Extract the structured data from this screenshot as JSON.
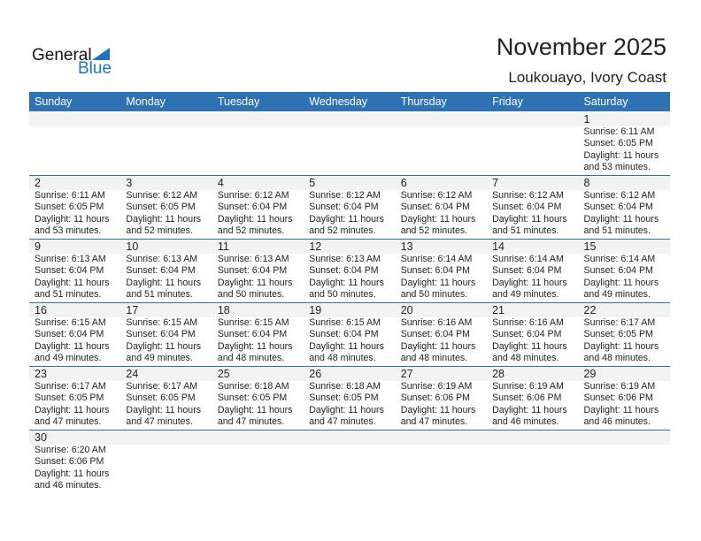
{
  "logo": {
    "general": "General",
    "blue": "Blue"
  },
  "title": "November 2025",
  "location": "Loukouayo, Ivory Coast",
  "colors": {
    "header": "#2e72b4",
    "brand": "#1e73be"
  },
  "weekdays": [
    "Sunday",
    "Monday",
    "Tuesday",
    "Wednesday",
    "Thursday",
    "Friday",
    "Saturday"
  ],
  "weeks": [
    [
      null,
      null,
      null,
      null,
      null,
      null,
      {
        "day": "1",
        "sunrise": "Sunrise: 6:11 AM",
        "sunset": "Sunset: 6:05 PM",
        "daylight1": "Daylight: 11 hours",
        "daylight2": "and 53 minutes."
      }
    ],
    [
      {
        "day": "2",
        "sunrise": "Sunrise: 6:11 AM",
        "sunset": "Sunset: 6:05 PM",
        "daylight1": "Daylight: 11 hours",
        "daylight2": "and 53 minutes."
      },
      {
        "day": "3",
        "sunrise": "Sunrise: 6:12 AM",
        "sunset": "Sunset: 6:05 PM",
        "daylight1": "Daylight: 11 hours",
        "daylight2": "and 52 minutes."
      },
      {
        "day": "4",
        "sunrise": "Sunrise: 6:12 AM",
        "sunset": "Sunset: 6:04 PM",
        "daylight1": "Daylight: 11 hours",
        "daylight2": "and 52 minutes."
      },
      {
        "day": "5",
        "sunrise": "Sunrise: 6:12 AM",
        "sunset": "Sunset: 6:04 PM",
        "daylight1": "Daylight: 11 hours",
        "daylight2": "and 52 minutes."
      },
      {
        "day": "6",
        "sunrise": "Sunrise: 6:12 AM",
        "sunset": "Sunset: 6:04 PM",
        "daylight1": "Daylight: 11 hours",
        "daylight2": "and 52 minutes."
      },
      {
        "day": "7",
        "sunrise": "Sunrise: 6:12 AM",
        "sunset": "Sunset: 6:04 PM",
        "daylight1": "Daylight: 11 hours",
        "daylight2": "and 51 minutes."
      },
      {
        "day": "8",
        "sunrise": "Sunrise: 6:12 AM",
        "sunset": "Sunset: 6:04 PM",
        "daylight1": "Daylight: 11 hours",
        "daylight2": "and 51 minutes."
      }
    ],
    [
      {
        "day": "9",
        "sunrise": "Sunrise: 6:13 AM",
        "sunset": "Sunset: 6:04 PM",
        "daylight1": "Daylight: 11 hours",
        "daylight2": "and 51 minutes."
      },
      {
        "day": "10",
        "sunrise": "Sunrise: 6:13 AM",
        "sunset": "Sunset: 6:04 PM",
        "daylight1": "Daylight: 11 hours",
        "daylight2": "and 51 minutes."
      },
      {
        "day": "11",
        "sunrise": "Sunrise: 6:13 AM",
        "sunset": "Sunset: 6:04 PM",
        "daylight1": "Daylight: 11 hours",
        "daylight2": "and 50 minutes."
      },
      {
        "day": "12",
        "sunrise": "Sunrise: 6:13 AM",
        "sunset": "Sunset: 6:04 PM",
        "daylight1": "Daylight: 11 hours",
        "daylight2": "and 50 minutes."
      },
      {
        "day": "13",
        "sunrise": "Sunrise: 6:14 AM",
        "sunset": "Sunset: 6:04 PM",
        "daylight1": "Daylight: 11 hours",
        "daylight2": "and 50 minutes."
      },
      {
        "day": "14",
        "sunrise": "Sunrise: 6:14 AM",
        "sunset": "Sunset: 6:04 PM",
        "daylight1": "Daylight: 11 hours",
        "daylight2": "and 49 minutes."
      },
      {
        "day": "15",
        "sunrise": "Sunrise: 6:14 AM",
        "sunset": "Sunset: 6:04 PM",
        "daylight1": "Daylight: 11 hours",
        "daylight2": "and 49 minutes."
      }
    ],
    [
      {
        "day": "16",
        "sunrise": "Sunrise: 6:15 AM",
        "sunset": "Sunset: 6:04 PM",
        "daylight1": "Daylight: 11 hours",
        "daylight2": "and 49 minutes."
      },
      {
        "day": "17",
        "sunrise": "Sunrise: 6:15 AM",
        "sunset": "Sunset: 6:04 PM",
        "daylight1": "Daylight: 11 hours",
        "daylight2": "and 49 minutes."
      },
      {
        "day": "18",
        "sunrise": "Sunrise: 6:15 AM",
        "sunset": "Sunset: 6:04 PM",
        "daylight1": "Daylight: 11 hours",
        "daylight2": "and 48 minutes."
      },
      {
        "day": "19",
        "sunrise": "Sunrise: 6:15 AM",
        "sunset": "Sunset: 6:04 PM",
        "daylight1": "Daylight: 11 hours",
        "daylight2": "and 48 minutes."
      },
      {
        "day": "20",
        "sunrise": "Sunrise: 6:16 AM",
        "sunset": "Sunset: 6:04 PM",
        "daylight1": "Daylight: 11 hours",
        "daylight2": "and 48 minutes."
      },
      {
        "day": "21",
        "sunrise": "Sunrise: 6:16 AM",
        "sunset": "Sunset: 6:04 PM",
        "daylight1": "Daylight: 11 hours",
        "daylight2": "and 48 minutes."
      },
      {
        "day": "22",
        "sunrise": "Sunrise: 6:17 AM",
        "sunset": "Sunset: 6:05 PM",
        "daylight1": "Daylight: 11 hours",
        "daylight2": "and 48 minutes."
      }
    ],
    [
      {
        "day": "23",
        "sunrise": "Sunrise: 6:17 AM",
        "sunset": "Sunset: 6:05 PM",
        "daylight1": "Daylight: 11 hours",
        "daylight2": "and 47 minutes."
      },
      {
        "day": "24",
        "sunrise": "Sunrise: 6:17 AM",
        "sunset": "Sunset: 6:05 PM",
        "daylight1": "Daylight: 11 hours",
        "daylight2": "and 47 minutes."
      },
      {
        "day": "25",
        "sunrise": "Sunrise: 6:18 AM",
        "sunset": "Sunset: 6:05 PM",
        "daylight1": "Daylight: 11 hours",
        "daylight2": "and 47 minutes."
      },
      {
        "day": "26",
        "sunrise": "Sunrise: 6:18 AM",
        "sunset": "Sunset: 6:05 PM",
        "daylight1": "Daylight: 11 hours",
        "daylight2": "and 47 minutes."
      },
      {
        "day": "27",
        "sunrise": "Sunrise: 6:19 AM",
        "sunset": "Sunset: 6:06 PM",
        "daylight1": "Daylight: 11 hours",
        "daylight2": "and 47 minutes."
      },
      {
        "day": "28",
        "sunrise": "Sunrise: 6:19 AM",
        "sunset": "Sunset: 6:06 PM",
        "daylight1": "Daylight: 11 hours",
        "daylight2": "and 46 minutes."
      },
      {
        "day": "29",
        "sunrise": "Sunrise: 6:19 AM",
        "sunset": "Sunset: 6:06 PM",
        "daylight1": "Daylight: 11 hours",
        "daylight2": "and 46 minutes."
      }
    ],
    [
      {
        "day": "30",
        "sunrise": "Sunrise: 6:20 AM",
        "sunset": "Sunset: 6:06 PM",
        "daylight1": "Daylight: 11 hours",
        "daylight2": "and 46 minutes."
      },
      null,
      null,
      null,
      null,
      null,
      null
    ]
  ]
}
